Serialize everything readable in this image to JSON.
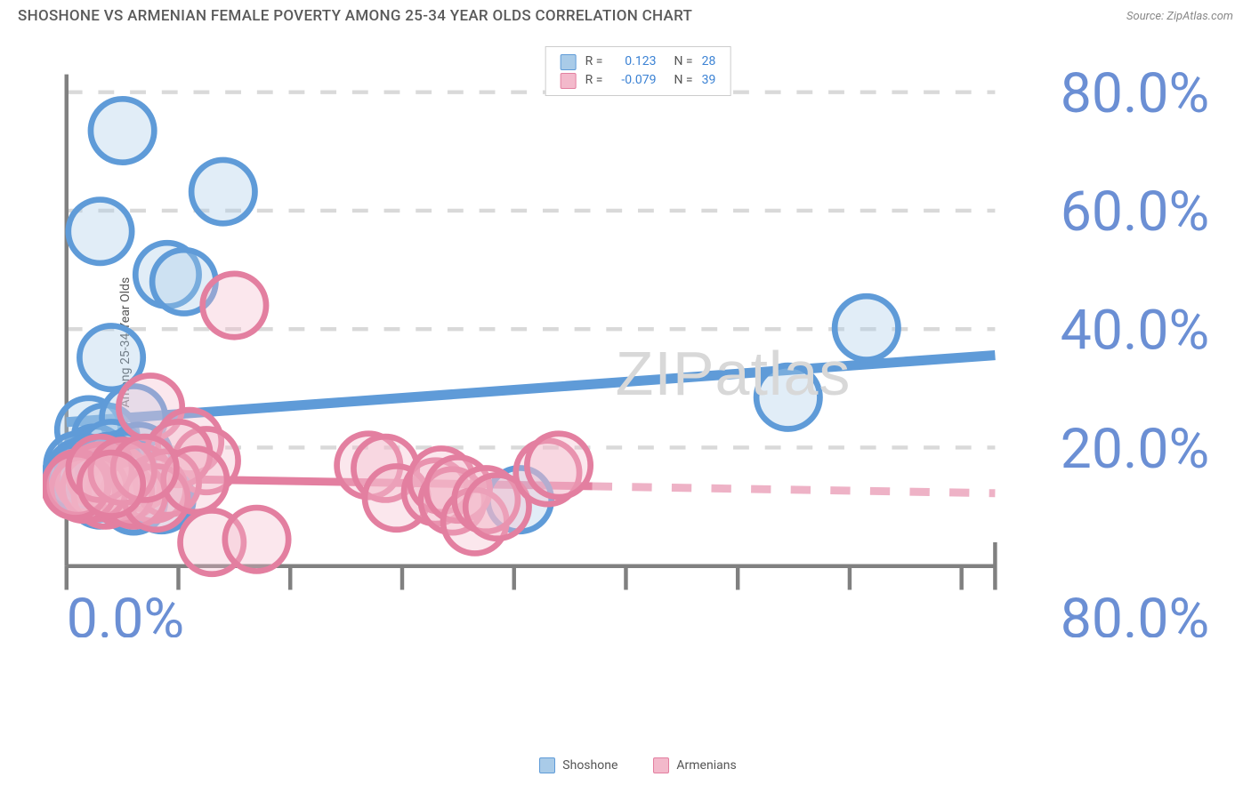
{
  "title": "SHOSHONE VS ARMENIAN FEMALE POVERTY AMONG 25-34 YEAR OLDS CORRELATION CHART",
  "source": "Source: ZipAtlas.com",
  "watermark_bold": "ZIP",
  "watermark_thin": "atlas",
  "y_axis_label": "Female Poverty Among 25-34 Year Olds",
  "chart": {
    "type": "scatter",
    "background_color": "#ffffff",
    "grid_color": "#d9d9d9",
    "axis_line_color": "#808080",
    "tick_label_color": "#6b8fd4",
    "xlim": [
      0,
      83
    ],
    "ylim": [
      0,
      83
    ],
    "x_ticks": [
      0,
      10,
      20,
      30,
      40,
      50,
      60,
      70,
      80
    ],
    "y_ticks": [
      20,
      40,
      60,
      80
    ],
    "x_tick_labels": {
      "0": "0.0%",
      "80": "80.0%"
    },
    "y_tick_labels": {
      "20": "20.0%",
      "40": "40.0%",
      "60": "60.0%",
      "80": "80.0%"
    },
    "marker_radius": 8,
    "marker_stroke_width": 1.5,
    "marker_fill_opacity": 0.35,
    "series": [
      {
        "name": "Shoshone",
        "color_stroke": "#5f9bd8",
        "color_fill": "#a9cbe8",
        "r_label": "R =",
        "r_value": "0.123",
        "n_label": "N =",
        "n_value": "28",
        "regression": {
          "x1": 0,
          "y1": 24.3,
          "x2": 83,
          "y2": 35.6,
          "width": 2.5,
          "dash_from_x": null
        },
        "points": [
          [
            5.0,
            73.5
          ],
          [
            14.0,
            63.2
          ],
          [
            3.0,
            56.5
          ],
          [
            9.0,
            49.2
          ],
          [
            10.5,
            48.0
          ],
          [
            4.0,
            35.2
          ],
          [
            64.5,
            28.5
          ],
          [
            71.5,
            40.2
          ],
          [
            2.0,
            23.0
          ],
          [
            3.5,
            21.8
          ],
          [
            6.0,
            25.0
          ],
          [
            2.5,
            18.2
          ],
          [
            4.0,
            19.0
          ],
          [
            6.5,
            18.5
          ],
          [
            5.0,
            17.2
          ],
          [
            3.0,
            15.5
          ],
          [
            1.0,
            17.0
          ],
          [
            1.5,
            14.5
          ],
          [
            2.5,
            13.0
          ],
          [
            4.5,
            14.0
          ],
          [
            6.0,
            11.0
          ],
          [
            8.5,
            11.2
          ],
          [
            3.0,
            12.0
          ],
          [
            1.2,
            15.8
          ],
          [
            2.0,
            16.5
          ],
          [
            0.8,
            15.0
          ],
          [
            40.5,
            11.2
          ],
          [
            3.8,
            16.8
          ]
        ]
      },
      {
        "name": "Armenians",
        "color_stroke": "#e37fa0",
        "color_fill": "#f3b9cb",
        "r_label": "R =",
        "r_value": "-0.079",
        "n_label": "N =",
        "n_value": "39",
        "regression": {
          "x1": 0,
          "y1": 15.0,
          "x2": 83,
          "y2": 12.3,
          "width": 2,
          "dash_from_x": 47
        },
        "points": [
          [
            15.0,
            44.0
          ],
          [
            7.5,
            26.8
          ],
          [
            11.0,
            21.0
          ],
          [
            12.5,
            17.8
          ],
          [
            10.0,
            19.0
          ],
          [
            2.0,
            14.5
          ],
          [
            3.0,
            15.2
          ],
          [
            4.5,
            14.8
          ],
          [
            5.5,
            13.5
          ],
          [
            6.5,
            15.0
          ],
          [
            7.8,
            13.0
          ],
          [
            9.0,
            14.0
          ],
          [
            3.5,
            12.0
          ],
          [
            4.8,
            12.5
          ],
          [
            6.0,
            12.0
          ],
          [
            8.0,
            11.5
          ],
          [
            2.5,
            13.2
          ],
          [
            1.5,
            13.0
          ],
          [
            1.0,
            14.0
          ],
          [
            0.8,
            13.5
          ],
          [
            11.5,
            14.5
          ],
          [
            13.0,
            4.0
          ],
          [
            17.0,
            4.5
          ],
          [
            27.0,
            17.0
          ],
          [
            28.5,
            16.5
          ],
          [
            29.5,
            11.5
          ],
          [
            33.0,
            12.5
          ],
          [
            33.5,
            14.5
          ],
          [
            34.5,
            11.0
          ],
          [
            35.0,
            13.0
          ],
          [
            36.5,
            7.5
          ],
          [
            37.5,
            11.2
          ],
          [
            38.5,
            10.0
          ],
          [
            43.0,
            15.8
          ],
          [
            44.0,
            17.0
          ],
          [
            3.0,
            16.5
          ],
          [
            5.0,
            16.0
          ],
          [
            7.0,
            16.5
          ],
          [
            4.0,
            13.8
          ]
        ]
      }
    ],
    "bottom_legend": [
      {
        "label": "Shoshone",
        "fill": "#a9cbe8",
        "stroke": "#5f9bd8"
      },
      {
        "label": "Armenians",
        "fill": "#f3b9cb",
        "stroke": "#e37fa0"
      }
    ]
  }
}
